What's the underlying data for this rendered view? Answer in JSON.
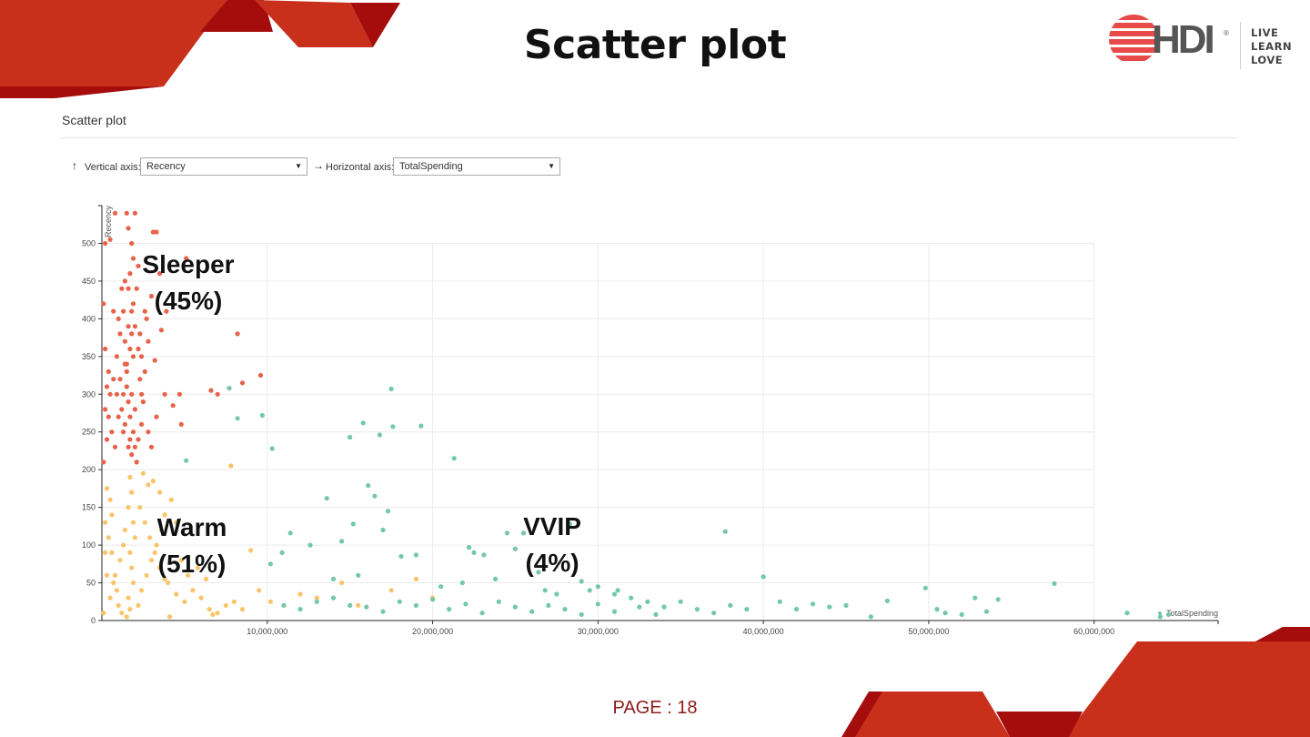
{
  "slide": {
    "title": "Scatter plot",
    "page_label": "PAGE : 18"
  },
  "brand": {
    "wordmark": "HDI",
    "registered": "®",
    "taglines": [
      "LIVE",
      "LEARN",
      "LOVE"
    ],
    "primary_color": "#c9301c",
    "dark_color": "#a50d0d"
  },
  "panel": {
    "title": "Scatter plot",
    "vertical_axis_label": "Vertical axis:",
    "vertical_axis_value": "Recency",
    "horizontal_axis_label": "Horizontal axis:",
    "horizontal_axis_value": "TotalSpending",
    "arrow_up_icon": "arrow-up-icon",
    "arrow_right_icon": "arrow-right-icon"
  },
  "chart_data": {
    "type": "scatter",
    "xlabel": "TotalSpending",
    "ylabel": "Recency",
    "xlim": [
      0,
      67500000
    ],
    "ylim": [
      0,
      550
    ],
    "x_ticks": [
      10000000,
      20000000,
      30000000,
      40000000,
      50000000,
      60000000
    ],
    "x_tick_labels": [
      "10,000,000",
      "20,000,000",
      "30,000,000",
      "40,000,000",
      "50,000,000",
      "60,000,000"
    ],
    "y_ticks": [
      0,
      50,
      100,
      150,
      200,
      250,
      300,
      350,
      400,
      450,
      500
    ],
    "y_tick_labels": [
      "0",
      "50",
      "100",
      "150",
      "200",
      "250",
      "300",
      "350",
      "400",
      "450",
      "500"
    ],
    "grid": true,
    "segments": [
      {
        "name": "Sleeper",
        "share": "(45%)",
        "color": "#e8624a"
      },
      {
        "name": "Warm",
        "share": "(51%)",
        "color": "#fac46a"
      },
      {
        "name": "VVIP",
        "share": "(4%)",
        "color": "#72c9a2"
      }
    ],
    "series": [
      {
        "name": "Sleeper",
        "color": "#e8624a",
        "points": [
          [
            200000,
            500
          ],
          [
            500000,
            505
          ],
          [
            800000,
            540
          ],
          [
            1500000,
            540
          ],
          [
            1800000,
            500
          ],
          [
            2000000,
            540
          ],
          [
            1600000,
            520
          ],
          [
            3100000,
            515
          ],
          [
            3300000,
            515
          ],
          [
            1400000,
            450
          ],
          [
            2200000,
            470
          ],
          [
            1900000,
            420
          ],
          [
            1600000,
            390
          ],
          [
            1700000,
            360
          ],
          [
            1500000,
            330
          ],
          [
            1800000,
            300
          ],
          [
            2000000,
            280
          ],
          [
            1900000,
            250
          ],
          [
            1700000,
            240
          ],
          [
            1600000,
            230
          ],
          [
            1800000,
            220
          ],
          [
            1000000,
            400
          ],
          [
            1100000,
            380
          ],
          [
            900000,
            350
          ],
          [
            700000,
            320
          ],
          [
            500000,
            300
          ],
          [
            400000,
            270
          ],
          [
            600000,
            250
          ],
          [
            800000,
            230
          ],
          [
            1200000,
            440
          ],
          [
            1300000,
            410
          ],
          [
            1400000,
            370
          ],
          [
            1500000,
            340
          ],
          [
            2300000,
            320
          ],
          [
            2500000,
            290
          ],
          [
            2700000,
            400
          ],
          [
            3000000,
            430
          ],
          [
            3500000,
            460
          ],
          [
            2800000,
            370
          ],
          [
            2600000,
            330
          ],
          [
            2400000,
            260
          ],
          [
            2200000,
            240
          ],
          [
            2000000,
            230
          ],
          [
            2100000,
            210
          ],
          [
            1800000,
            380
          ],
          [
            1900000,
            350
          ],
          [
            1700000,
            270
          ],
          [
            1600000,
            290
          ],
          [
            1500000,
            310
          ],
          [
            1400000,
            260
          ],
          [
            1300000,
            250
          ],
          [
            3600000,
            385
          ],
          [
            4300000,
            285
          ],
          [
            4700000,
            300
          ],
          [
            4800000,
            260
          ],
          [
            5100000,
            480
          ],
          [
            6600000,
            305
          ],
          [
            7000000,
            300
          ],
          [
            8200000,
            380
          ],
          [
            8500000,
            315
          ],
          [
            9600000,
            325
          ],
          [
            3200000,
            345
          ],
          [
            3900000,
            410
          ],
          [
            1900000,
            480
          ],
          [
            2100000,
            440
          ],
          [
            2300000,
            380
          ],
          [
            2600000,
            410
          ],
          [
            2400000,
            350
          ],
          [
            100000,
            420
          ],
          [
            200000,
            360
          ],
          [
            300000,
            310
          ],
          [
            200000,
            280
          ],
          [
            300000,
            240
          ],
          [
            100000,
            210
          ],
          [
            400000,
            330
          ],
          [
            700000,
            410
          ],
          [
            900000,
            300
          ],
          [
            1000000,
            270
          ],
          [
            1100000,
            320
          ],
          [
            1200000,
            280
          ],
          [
            1300000,
            300
          ],
          [
            1400000,
            340
          ],
          [
            1600000,
            440
          ],
          [
            1700000,
            460
          ],
          [
            1800000,
            410
          ],
          [
            2000000,
            390
          ],
          [
            2200000,
            360
          ],
          [
            2400000,
            300
          ],
          [
            2800000,
            250
          ],
          [
            3000000,
            230
          ],
          [
            3300000,
            270
          ],
          [
            3800000,
            300
          ]
        ]
      },
      {
        "name": "Warm",
        "color": "#fac46a",
        "points": [
          [
            300000,
            175
          ],
          [
            500000,
            160
          ],
          [
            200000,
            130
          ],
          [
            400000,
            110
          ],
          [
            600000,
            90
          ],
          [
            800000,
            60
          ],
          [
            900000,
            40
          ],
          [
            1000000,
            20
          ],
          [
            1200000,
            10
          ],
          [
            1500000,
            5
          ],
          [
            1700000,
            190
          ],
          [
            1800000,
            170
          ],
          [
            1600000,
            150
          ],
          [
            1900000,
            130
          ],
          [
            2000000,
            110
          ],
          [
            1700000,
            90
          ],
          [
            1800000,
            70
          ],
          [
            1900000,
            50
          ],
          [
            1600000,
            30
          ],
          [
            1700000,
            15
          ],
          [
            2500000,
            195
          ],
          [
            2800000,
            180
          ],
          [
            3100000,
            185
          ],
          [
            3500000,
            170
          ],
          [
            3800000,
            140
          ],
          [
            3600000,
            120
          ],
          [
            3300000,
            100
          ],
          [
            3000000,
            80
          ],
          [
            2700000,
            60
          ],
          [
            2400000,
            40
          ],
          [
            2200000,
            20
          ],
          [
            4000000,
            50
          ],
          [
            4500000,
            35
          ],
          [
            5000000,
            25
          ],
          [
            5500000,
            40
          ],
          [
            6000000,
            30
          ],
          [
            6500000,
            15
          ],
          [
            7000000,
            10
          ],
          [
            7500000,
            20
          ],
          [
            8000000,
            25
          ],
          [
            8500000,
            15
          ],
          [
            7800000,
            205
          ],
          [
            9000000,
            93
          ],
          [
            9500000,
            40
          ],
          [
            10200000,
            25
          ],
          [
            12000000,
            35
          ],
          [
            13000000,
            30
          ],
          [
            14500000,
            50
          ],
          [
            17500000,
            40
          ],
          [
            15500000,
            20
          ],
          [
            20000000,
            30
          ],
          [
            19000000,
            55
          ],
          [
            4200000,
            160
          ],
          [
            4500000,
            130
          ],
          [
            4800000,
            80
          ],
          [
            5200000,
            60
          ],
          [
            5800000,
            70
          ],
          [
            6300000,
            55
          ],
          [
            2300000,
            150
          ],
          [
            2600000,
            130
          ],
          [
            2900000,
            110
          ],
          [
            3200000,
            90
          ],
          [
            3500000,
            70
          ],
          [
            3800000,
            55
          ],
          [
            1100000,
            80
          ],
          [
            1300000,
            100
          ],
          [
            1400000,
            120
          ],
          [
            600000,
            140
          ],
          [
            700000,
            50
          ],
          [
            500000,
            30
          ],
          [
            300000,
            60
          ],
          [
            200000,
            90
          ],
          [
            100000,
            10
          ],
          [
            4100000,
            5
          ],
          [
            6700000,
            8
          ]
        ]
      },
      {
        "name": "VVIP",
        "color": "#72c9a2",
        "points": [
          [
            7700000,
            308
          ],
          [
            8200000,
            268
          ],
          [
            9700000,
            272
          ],
          [
            10300000,
            228
          ],
          [
            17500000,
            307
          ],
          [
            19300000,
            258
          ],
          [
            21300000,
            215
          ],
          [
            15000000,
            243
          ],
          [
            15800000,
            262
          ],
          [
            16800000,
            246
          ],
          [
            17600000,
            257
          ],
          [
            5100000,
            212
          ],
          [
            16100000,
            179
          ],
          [
            16500000,
            165
          ],
          [
            17300000,
            145
          ],
          [
            13600000,
            162
          ],
          [
            15200000,
            128
          ],
          [
            17000000,
            120
          ],
          [
            11400000,
            116
          ],
          [
            10900000,
            90
          ],
          [
            10200000,
            75
          ],
          [
            12600000,
            100
          ],
          [
            14500000,
            105
          ],
          [
            18100000,
            85
          ],
          [
            19000000,
            87
          ],
          [
            22200000,
            97
          ],
          [
            22500000,
            90
          ],
          [
            23100000,
            87
          ],
          [
            24500000,
            116
          ],
          [
            25500000,
            116
          ],
          [
            25000000,
            95
          ],
          [
            26400000,
            64
          ],
          [
            28300000,
            128
          ],
          [
            29000000,
            52
          ],
          [
            30000000,
            45
          ],
          [
            31200000,
            40
          ],
          [
            32000000,
            30
          ],
          [
            33000000,
            25
          ],
          [
            34000000,
            18
          ],
          [
            35000000,
            25
          ],
          [
            36000000,
            15
          ],
          [
            37000000,
            10
          ],
          [
            37700000,
            118
          ],
          [
            38000000,
            20
          ],
          [
            39000000,
            15
          ],
          [
            40000000,
            58
          ],
          [
            41000000,
            25
          ],
          [
            42000000,
            15
          ],
          [
            43000000,
            22
          ],
          [
            44000000,
            18
          ],
          [
            45000000,
            20
          ],
          [
            46500000,
            5
          ],
          [
            47500000,
            26
          ],
          [
            49800000,
            43
          ],
          [
            50500000,
            15
          ],
          [
            51000000,
            10
          ],
          [
            52000000,
            8
          ],
          [
            52800000,
            30
          ],
          [
            53500000,
            12
          ],
          [
            54200000,
            28
          ],
          [
            57600000,
            49
          ],
          [
            62000000,
            10
          ],
          [
            64000000,
            5
          ],
          [
            64500000,
            8
          ],
          [
            11000000,
            20
          ],
          [
            12000000,
            15
          ],
          [
            13000000,
            25
          ],
          [
            14000000,
            30
          ],
          [
            15000000,
            20
          ],
          [
            16000000,
            18
          ],
          [
            17000000,
            12
          ],
          [
            18000000,
            25
          ],
          [
            19000000,
            20
          ],
          [
            20000000,
            28
          ],
          [
            21000000,
            15
          ],
          [
            22000000,
            22
          ],
          [
            23000000,
            10
          ],
          [
            24000000,
            25
          ],
          [
            25000000,
            18
          ],
          [
            26000000,
            12
          ],
          [
            27000000,
            20
          ],
          [
            28000000,
            15
          ],
          [
            29000000,
            8
          ],
          [
            30000000,
            22
          ],
          [
            31000000,
            12
          ],
          [
            32500000,
            18
          ],
          [
            33500000,
            8
          ],
          [
            14000000,
            55
          ],
          [
            15500000,
            60
          ],
          [
            20500000,
            45
          ],
          [
            21800000,
            50
          ],
          [
            23800000,
            55
          ],
          [
            26800000,
            40
          ],
          [
            27500000,
            35
          ],
          [
            29500000,
            40
          ],
          [
            31000000,
            35
          ]
        ]
      }
    ]
  }
}
